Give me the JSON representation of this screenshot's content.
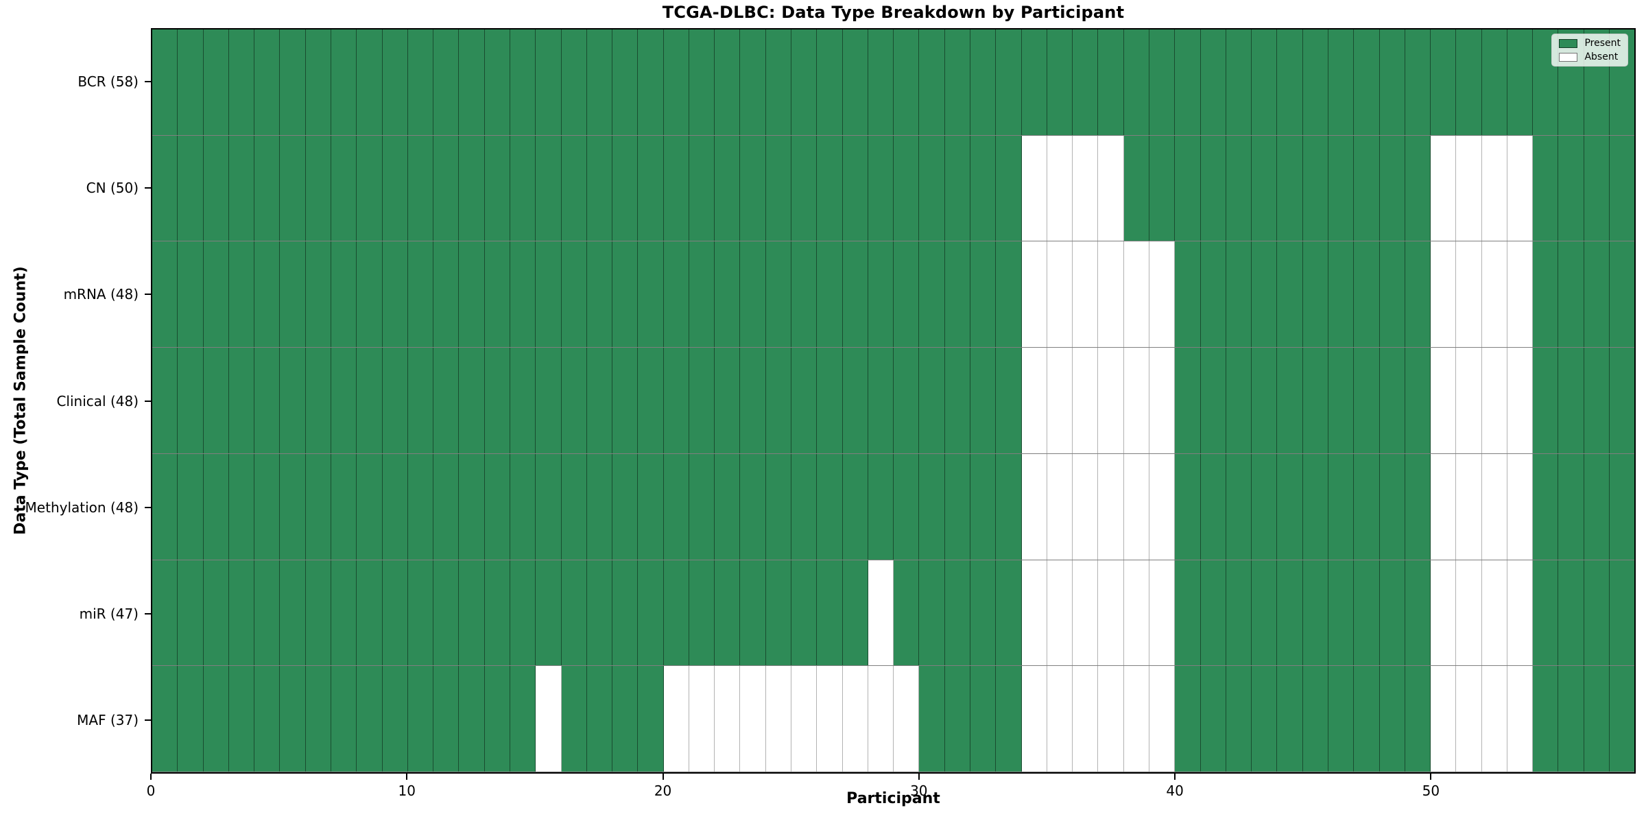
{
  "chart_data": {
    "type": "heatmap",
    "title": "TCGA-DLBC: Data Type Breakdown by Participant",
    "xlabel": "Participant",
    "ylabel": "Data Type (Total Sample Count)",
    "n_participants": 58,
    "x_tick_values": [
      0,
      10,
      20,
      30,
      40,
      50
    ],
    "x_range": [
      0,
      58
    ],
    "grid": true,
    "legend_position": "upper right",
    "colors": {
      "present": "#2e8b57",
      "absent": "#ffffff",
      "cell_edge": "rgba(0,0,0,0.45)",
      "spine": "#000000"
    },
    "legend": [
      {
        "label": "Present",
        "color": "#2e8b57"
      },
      {
        "label": "Absent",
        "color": "#ffffff"
      }
    ],
    "rows": [
      {
        "name": "bcr",
        "label": "BCR (58)",
        "present_count": 58,
        "absent": []
      },
      {
        "name": "cn",
        "label": "CN (50)",
        "present_count": 50,
        "absent": [
          34,
          35,
          36,
          37,
          50,
          51,
          52,
          53
        ]
      },
      {
        "name": "mrna",
        "label": "mRNA (48)",
        "present_count": 48,
        "absent": [
          34,
          35,
          36,
          37,
          38,
          39,
          50,
          51,
          52,
          53
        ]
      },
      {
        "name": "clinical",
        "label": "Clinical (48)",
        "present_count": 48,
        "absent": [
          34,
          35,
          36,
          37,
          38,
          39,
          50,
          51,
          52,
          53
        ]
      },
      {
        "name": "methylation",
        "label": "Methylation (48)",
        "present_count": 48,
        "absent": [
          34,
          35,
          36,
          37,
          38,
          39,
          50,
          51,
          52,
          53
        ]
      },
      {
        "name": "mir",
        "label": "miR (47)",
        "present_count": 47,
        "absent": [
          28,
          34,
          35,
          36,
          37,
          38,
          39,
          50,
          51,
          52,
          53
        ]
      },
      {
        "name": "maf",
        "label": "MAF (37)",
        "present_count": 37,
        "absent": [
          15,
          20,
          21,
          22,
          23,
          24,
          25,
          26,
          27,
          28,
          29,
          34,
          35,
          36,
          37,
          38,
          39,
          50,
          51,
          52,
          53
        ]
      }
    ]
  }
}
